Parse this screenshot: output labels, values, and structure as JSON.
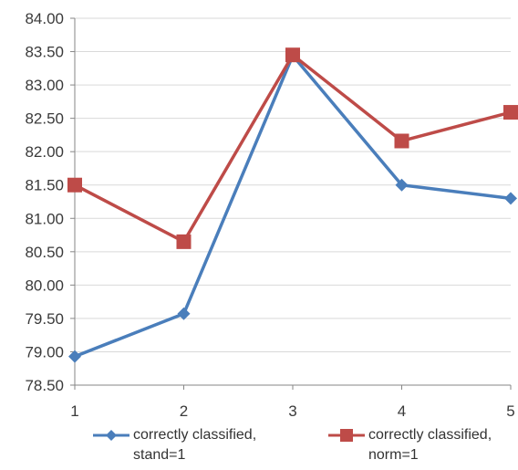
{
  "chart_data": {
    "type": "line",
    "title": "",
    "xlabel": "",
    "ylabel": "",
    "x": [
      1,
      2,
      3,
      4,
      5
    ],
    "ylim": [
      78.5,
      84.0
    ],
    "ytick_step": 0.5,
    "yticks": [
      "78.50",
      "79.00",
      "79.50",
      "80.00",
      "80.50",
      "81.00",
      "81.50",
      "82.00",
      "82.50",
      "83.00",
      "83.50",
      "84.00"
    ],
    "xticks": [
      "1",
      "2",
      "3",
      "4",
      "5"
    ],
    "grid": "horizontal",
    "legend_position": "bottom",
    "series": [
      {
        "name": "correctly classified, stand=1",
        "legend_line1": "correctly classified,",
        "legend_line2": "stand=1",
        "color": "#4a7ebb",
        "marker": "diamond",
        "values": [
          78.93,
          79.57,
          83.44,
          81.5,
          81.3
        ]
      },
      {
        "name": "correctly classified, norm=1",
        "legend_line1": "correctly classified,",
        "legend_line2": "norm=1",
        "color": "#be4b48",
        "marker": "square",
        "values": [
          81.5,
          80.65,
          83.45,
          82.16,
          82.59
        ]
      }
    ]
  }
}
